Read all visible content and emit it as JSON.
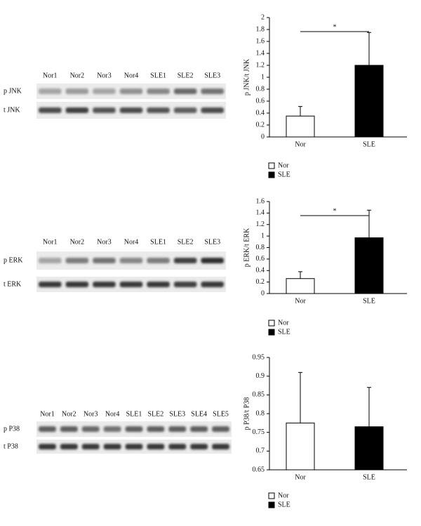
{
  "blots": [
    {
      "lanes": [
        "Nor1",
        "Nor2",
        "Nor3",
        "Nor4",
        "SLE1",
        "SLE2",
        "SLE3"
      ],
      "rows": [
        "p JNK",
        "t JNK"
      ]
    },
    {
      "lanes": [
        "Nor1",
        "Nor2",
        "Nor3",
        "Nor4",
        "SLE1",
        "SLE2",
        "SLE3"
      ],
      "rows": [
        "p ERK",
        "t ERK"
      ]
    },
    {
      "lanes": [
        "Nor1",
        "Nor2",
        "Nor3",
        "Nor4",
        "SLE1",
        "SLE2",
        "SLE3",
        "SLE4",
        "SLE5"
      ],
      "rows": [
        "p P38",
        "t P38"
      ]
    }
  ],
  "chart_data": [
    {
      "type": "bar",
      "y_label": "p JNK/t JNK",
      "categories": [
        "Nor",
        "SLE"
      ],
      "annotation": "*",
      "series": [
        {
          "name": "Nor",
          "color": "#ffffff",
          "values": [
            0.35,
            null
          ],
          "errors": [
            0.16,
            null
          ]
        },
        {
          "name": "SLE",
          "color": "#000000",
          "values": [
            null,
            1.2
          ],
          "errors": [
            null,
            0.55
          ]
        }
      ],
      "ylim": [
        0,
        2
      ],
      "yticks": [
        0,
        0.2,
        0.4,
        0.6,
        0.8,
        1,
        1.2,
        1.4,
        1.6,
        1.8,
        2
      ]
    },
    {
      "type": "bar",
      "y_label": "p ERK/t ERK",
      "categories": [
        "Nor",
        "SLE"
      ],
      "annotation": "*",
      "series": [
        {
          "name": "Nor",
          "color": "#ffffff",
          "values": [
            0.26,
            null
          ],
          "errors": [
            0.12,
            null
          ]
        },
        {
          "name": "SLE",
          "color": "#000000",
          "values": [
            null,
            0.97
          ],
          "errors": [
            null,
            0.48
          ]
        }
      ],
      "ylim": [
        0,
        1.6
      ],
      "yticks": [
        0,
        0.2,
        0.4,
        0.6,
        0.8,
        1,
        1.2,
        1.4,
        1.6
      ]
    },
    {
      "type": "bar",
      "y_label": "p P38/t P38",
      "categories": [
        "Nor",
        "SLE"
      ],
      "series": [
        {
          "name": "Nor",
          "color": "#ffffff",
          "values": [
            0.775,
            null
          ],
          "errors": [
            0.135,
            null
          ]
        },
        {
          "name": "SLE",
          "color": "#000000",
          "values": [
            null,
            0.765
          ],
          "errors": [
            null,
            0.105
          ]
        }
      ],
      "ylim": [
        0.65,
        0.95
      ],
      "yticks": [
        0.65,
        0.7,
        0.75,
        0.8,
        0.85,
        0.9,
        0.95
      ]
    }
  ]
}
